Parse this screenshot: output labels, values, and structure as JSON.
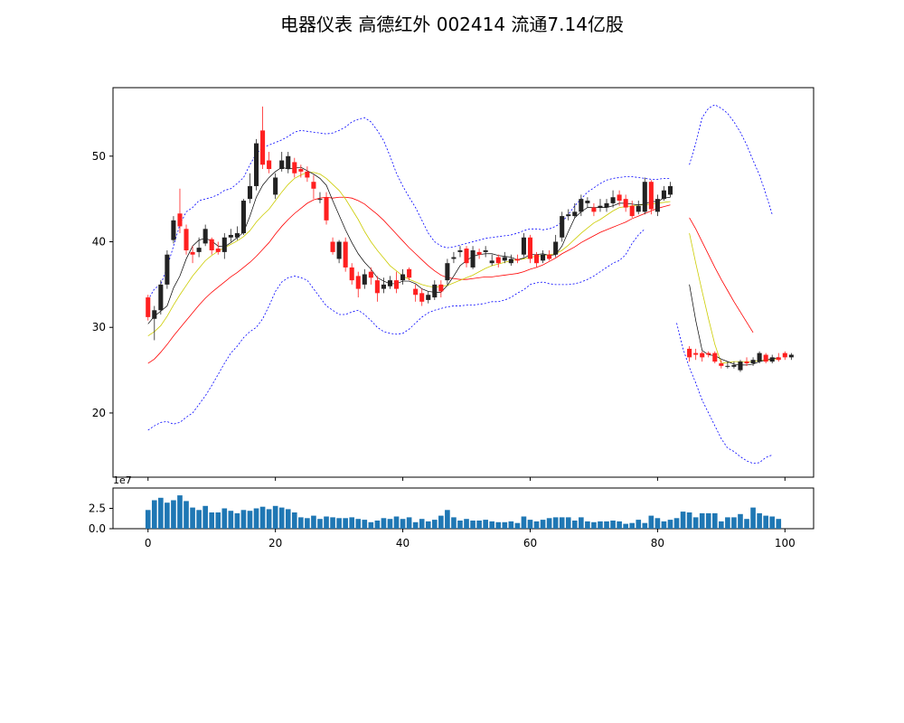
{
  "title": "电器仪表 高德红外 002414 流通7.14亿股",
  "chart_data": {
    "type": "candlestick",
    "title": "电器仪表 高德红外 002414 流通7.14亿股",
    "x": {
      "ticks": [
        0,
        20,
        40,
        60,
        80,
        100
      ],
      "range": [
        -5.5,
        104.5
      ]
    },
    "price_axis": {
      "ticks": [
        20,
        30,
        40,
        50
      ],
      "range": [
        12.5,
        58
      ]
    },
    "volume_axis": {
      "ticks": [
        0.0,
        2.5
      ],
      "offset_label": "1e7",
      "range": [
        0,
        5
      ]
    },
    "colors": {
      "up": "#222222",
      "down": "#ff2020",
      "ma_short": "#000000",
      "ma_mid": "#cccc00",
      "ma_long": "#ff0000",
      "boll": "#0000ff",
      "volume": "#1f77b4"
    },
    "candles": [
      [
        33.5,
        31.2,
        33.8,
        30.8
      ],
      [
        31.0,
        32.0,
        32.5,
        28.5
      ],
      [
        32.0,
        35.0,
        35.5,
        31.5
      ],
      [
        35.0,
        38.5,
        39.0,
        34.5
      ],
      [
        40.2,
        42.5,
        43.0,
        39.8
      ],
      [
        43.3,
        41.8,
        46.2,
        41.0
      ],
      [
        41.5,
        39.0,
        42.0,
        38.5
      ],
      [
        38.8,
        38.5,
        39.5,
        37.5
      ],
      [
        38.8,
        39.3,
        40.5,
        38.2
      ],
      [
        39.8,
        41.5,
        42.0,
        39.5
      ],
      [
        40.3,
        39.0,
        40.5,
        38.5
      ],
      [
        39.2,
        38.8,
        40.0,
        38.5
      ],
      [
        38.8,
        40.5,
        41.0,
        38.0
      ],
      [
        40.5,
        40.8,
        41.5,
        40.0
      ],
      [
        40.5,
        41.0,
        41.8,
        40.2
      ],
      [
        41.0,
        44.8,
        45.0,
        40.8
      ],
      [
        45.0,
        46.5,
        48.0,
        44.5
      ],
      [
        46.5,
        51.5,
        52.0,
        46.0
      ],
      [
        53.0,
        49.0,
        55.8,
        48.5
      ],
      [
        49.5,
        48.5,
        50.5,
        48.0
      ],
      [
        45.5,
        47.5,
        48.0,
        45.0
      ],
      [
        48.5,
        49.5,
        50.5,
        48.2
      ],
      [
        48.5,
        50.0,
        50.5,
        48.0
      ],
      [
        49.3,
        48.0,
        49.8,
        47.5
      ],
      [
        48.5,
        48.2,
        49.0,
        47.5
      ],
      [
        48.2,
        47.5,
        48.8,
        47.0
      ],
      [
        47.0,
        46.2,
        47.8,
        45.0
      ],
      [
        45.0,
        45.0,
        45.8,
        44.5
      ],
      [
        45.2,
        42.5,
        45.8,
        42.0
      ],
      [
        40.0,
        38.8,
        40.5,
        38.5
      ],
      [
        38.0,
        40.0,
        40.2,
        37.5
      ],
      [
        40.0,
        37.0,
        40.5,
        36.5
      ],
      [
        37.0,
        35.5,
        37.5,
        35.0
      ],
      [
        36.0,
        34.5,
        36.5,
        33.5
      ],
      [
        35.0,
        36.2,
        36.8,
        34.5
      ],
      [
        36.5,
        35.8,
        37.0,
        35.0
      ],
      [
        35.5,
        34.0,
        36.0,
        33.0
      ],
      [
        34.5,
        35.0,
        35.8,
        34.0
      ],
      [
        34.8,
        35.5,
        36.0,
        34.5
      ],
      [
        35.5,
        34.5,
        36.5,
        34.0
      ],
      [
        35.5,
        36.2,
        36.8,
        35.0
      ],
      [
        36.8,
        35.8,
        37.0,
        35.5
      ],
      [
        34.5,
        33.8,
        35.0,
        33.0
      ],
      [
        34.0,
        33.0,
        34.5,
        32.5
      ],
      [
        33.2,
        33.8,
        34.2,
        32.8
      ],
      [
        33.5,
        35.0,
        35.5,
        33.2
      ],
      [
        35.0,
        34.2,
        35.5,
        33.5
      ],
      [
        35.5,
        37.5,
        38.0,
        35.0
      ],
      [
        38.0,
        38.2,
        38.8,
        37.5
      ],
      [
        38.8,
        39.0,
        39.5,
        38.2
      ],
      [
        39.2,
        37.5,
        39.5,
        37.0
      ],
      [
        37.0,
        39.0,
        39.5,
        36.8
      ],
      [
        38.8,
        38.5,
        39.2,
        38.0
      ],
      [
        38.8,
        39.0,
        39.5,
        38.2
      ],
      [
        37.5,
        37.8,
        38.5,
        37.2
      ],
      [
        38.2,
        37.5,
        38.5,
        37.0
      ],
      [
        37.8,
        38.2,
        38.8,
        37.5
      ],
      [
        37.5,
        38.0,
        38.5,
        37.2
      ],
      [
        38.0,
        37.8,
        38.5,
        37.5
      ],
      [
        38.5,
        40.5,
        41.0,
        38.2
      ],
      [
        40.5,
        38.0,
        40.8,
        37.5
      ],
      [
        38.5,
        37.5,
        38.8,
        37.0
      ],
      [
        37.8,
        38.5,
        39.0,
        37.5
      ],
      [
        38.5,
        38.0,
        39.0,
        37.8
      ],
      [
        38.5,
        40.0,
        40.8,
        38.2
      ],
      [
        40.5,
        43.0,
        43.5,
        40.0
      ],
      [
        43.0,
        43.2,
        43.8,
        42.5
      ],
      [
        43.0,
        43.5,
        44.5,
        42.8
      ],
      [
        43.5,
        45.0,
        45.5,
        43.0
      ],
      [
        44.5,
        44.8,
        45.2,
        44.0
      ],
      [
        44.0,
        43.5,
        44.5,
        43.0
      ],
      [
        44.0,
        44.2,
        45.0,
        43.5
      ],
      [
        44.0,
        44.5,
        45.0,
        43.5
      ],
      [
        44.5,
        45.2,
        46.0,
        44.0
      ],
      [
        45.5,
        44.8,
        46.0,
        44.2
      ],
      [
        45.0,
        44.0,
        45.5,
        43.5
      ],
      [
        44.2,
        43.0,
        44.8,
        42.8
      ],
      [
        43.5,
        44.2,
        44.8,
        43.2
      ],
      [
        43.5,
        47.0,
        47.5,
        43.2
      ],
      [
        47.0,
        43.8,
        47.2,
        43.2
      ],
      [
        43.5,
        45.0,
        45.5,
        43.0
      ],
      [
        45.0,
        46.0,
        46.5,
        44.8
      ],
      [
        45.5,
        46.5,
        47.0,
        45.2
      ],
      null,
      null,
      [
        27.5,
        26.5,
        27.8,
        26.0
      ],
      [
        27.0,
        26.8,
        27.5,
        26.2
      ],
      [
        27.0,
        26.5,
        27.2,
        26.0
      ],
      [
        27.0,
        26.8,
        27.2,
        26.5
      ],
      [
        27.0,
        26.0,
        27.2,
        25.8
      ],
      [
        25.8,
        25.5,
        26.2,
        25.2
      ],
      [
        25.5,
        25.5,
        26.0,
        25.2
      ],
      [
        25.4,
        25.6,
        26.0,
        25.2
      ],
      [
        25.0,
        26.0,
        26.2,
        24.8
      ],
      [
        26.0,
        25.8,
        26.5,
        25.5
      ],
      [
        25.8,
        26.2,
        26.5,
        25.5
      ],
      [
        26.0,
        27.0,
        27.2,
        25.8
      ],
      [
        26.8,
        26.0,
        27.0,
        25.8
      ],
      [
        26.0,
        26.5,
        26.8,
        25.8
      ],
      [
        26.5,
        26.2,
        27.0,
        26.0
      ],
      [
        27.0,
        26.5,
        27.2,
        26.2
      ],
      [
        26.5,
        26.8,
        27.0,
        26.2
      ]
    ],
    "ma_short": [
      30.4,
      31.3,
      31.9,
      32.5,
      34.6,
      36.0,
      38.0,
      39.5,
      40.2,
      40.4,
      40.1,
      39.5,
      39.4,
      39.9,
      40.5,
      41.1,
      43.0,
      45.2,
      46.6,
      47.5,
      48.2,
      48.7,
      48.5,
      48.6,
      48.7,
      48.3,
      47.9,
      47.4,
      46.6,
      44.8,
      43.1,
      41.4,
      39.9,
      38.6,
      37.6,
      36.8,
      35.8,
      35.4,
      35.1,
      35.1,
      35.4,
      35.4,
      35.1,
      34.5,
      34.2,
      34.1,
      34.1,
      34.9,
      36.0,
      37.2,
      37.8,
      38.3,
      38.5,
      38.6,
      38.6,
      38.4,
      38.3,
      38.2,
      37.9,
      38.1,
      38.5,
      38.5,
      38.6,
      38.4,
      38.5,
      39.5,
      41.2,
      42.8,
      43.5,
      44.0,
      44.0,
      44.0,
      44.0,
      44.2,
      44.5,
      44.5,
      44.4,
      44.3,
      44.4,
      44.7,
      44.7,
      45.1,
      45.2,
      null,
      null,
      35.0,
      30.8,
      27.3,
      26.8,
      26.7,
      26.3,
      26.0,
      25.7,
      25.6,
      25.6,
      25.7,
      26.0,
      26.2,
      26.3,
      26.5
    ],
    "ma_mid": [
      29.0,
      29.5,
      30.2,
      31.3,
      32.6,
      33.8,
      34.9,
      36.0,
      36.9,
      37.8,
      38.4,
      38.9,
      39.3,
      39.7,
      40.1,
      40.6,
      41.3,
      42.3,
      43.1,
      43.8,
      44.8,
      45.8,
      46.7,
      47.4,
      47.8,
      48.1,
      48.1,
      47.9,
      47.4,
      46.7,
      46.0,
      45.0,
      43.8,
      42.6,
      41.2,
      40.0,
      39.0,
      38.1,
      37.2,
      36.6,
      36.0,
      35.6,
      35.3,
      35.0,
      34.8,
      34.7,
      34.8,
      34.9,
      35.2,
      35.5,
      35.8,
      36.1,
      36.5,
      36.9,
      37.2,
      37.4,
      37.6,
      37.8,
      37.9,
      38.0,
      38.2,
      38.3,
      38.4,
      38.5,
      38.6,
      39.0,
      39.6,
      40.3,
      41.0,
      41.6,
      42.2,
      42.6,
      43.1,
      43.6,
      44.0,
      44.1,
      44.2,
      44.3,
      44.3,
      44.4,
      44.5,
      44.6,
      44.7,
      null,
      null,
      41.0,
      37.5,
      34.2,
      31.0,
      28.0,
      25.8,
      25.9,
      26.0,
      26.0,
      26.0,
      26.0,
      26.1,
      26.2,
      26.2,
      26.3
    ],
    "ma_long": [
      25.8,
      26.3,
      27.1,
      28.0,
      29.0,
      29.9,
      30.8,
      31.7,
      32.6,
      33.4,
      34.1,
      34.7,
      35.3,
      35.9,
      36.4,
      37.0,
      37.6,
      38.3,
      39.1,
      39.9,
      40.9,
      41.8,
      42.6,
      43.3,
      43.9,
      44.5,
      44.9,
      45.1,
      45.2,
      45.1,
      45.2,
      45.2,
      45.1,
      44.8,
      44.4,
      43.8,
      43.2,
      42.5,
      41.7,
      40.9,
      40.1,
      39.3,
      38.6,
      37.9,
      37.2,
      36.6,
      36.1,
      35.8,
      35.7,
      35.6,
      35.6,
      35.7,
      35.8,
      35.9,
      35.9,
      36.0,
      36.1,
      36.2,
      36.3,
      36.5,
      36.8,
      37.0,
      37.3,
      37.7,
      38.1,
      38.6,
      39.0,
      39.4,
      39.9,
      40.3,
      40.7,
      41.1,
      41.4,
      41.7,
      42.0,
      42.3,
      42.7,
      43.0,
      43.3,
      43.6,
      43.9,
      44.1,
      44.3,
      null,
      null,
      42.8,
      41.5,
      40.0,
      38.5,
      37.0,
      35.6,
      34.3,
      33.0,
      31.8,
      30.6,
      29.4,
      null,
      null,
      null,
      null
    ],
    "boll_upper": [
      33.2,
      34.5,
      35.0,
      37.0,
      39.5,
      42.0,
      43.5,
      44.0,
      44.8,
      45.0,
      45.2,
      45.5,
      46.0,
      46.2,
      46.8,
      47.5,
      49.0,
      50.3,
      51.0,
      51.3,
      51.6,
      51.9,
      52.3,
      52.8,
      53.0,
      52.9,
      52.8,
      52.7,
      52.6,
      52.7,
      53.0,
      53.4,
      54.0,
      54.3,
      54.5,
      54.0,
      53.0,
      51.8,
      50.0,
      48.0,
      46.5,
      45.2,
      44.0,
      42.5,
      41.0,
      40.0,
      39.5,
      39.3,
      39.4,
      39.6,
      39.8,
      40.0,
      40.2,
      40.4,
      40.5,
      40.6,
      40.7,
      40.8,
      41.0,
      41.3,
      41.5,
      41.5,
      41.4,
      41.5,
      41.8,
      42.3,
      43.2,
      44.2,
      45.0,
      45.8,
      46.3,
      46.8,
      47.2,
      47.4,
      47.5,
      47.6,
      47.6,
      47.5,
      47.4,
      47.3,
      47.3,
      47.4,
      47.4,
      null,
      null,
      49.0,
      51.5,
      54.5,
      55.6,
      56.0,
      55.6,
      55.0,
      54.0,
      52.8,
      51.3,
      49.5,
      47.8,
      45.6,
      43.2
    ],
    "boll_lower": [
      18.0,
      18.5,
      18.9,
      19.0,
      18.7,
      18.9,
      19.5,
      20.0,
      21.0,
      22.0,
      23.2,
      24.5,
      25.8,
      27.0,
      27.8,
      28.8,
      29.5,
      30.0,
      31.0,
      32.5,
      34.2,
      35.3,
      35.8,
      36.0,
      35.8,
      35.5,
      34.5,
      33.5,
      32.5,
      32.0,
      31.5,
      31.5,
      31.8,
      32.0,
      31.5,
      30.8,
      30.0,
      29.5,
      29.3,
      29.2,
      29.3,
      29.8,
      30.5,
      31.2,
      31.7,
      32.0,
      32.2,
      32.4,
      32.5,
      32.5,
      32.6,
      32.6,
      32.7,
      32.8,
      33.0,
      33.0,
      33.2,
      33.5,
      34.0,
      34.4,
      35.0,
      35.2,
      35.3,
      35.1,
      35.0,
      35.0,
      35.0,
      35.1,
      35.3,
      35.6,
      36.0,
      36.5,
      37.0,
      37.5,
      37.8,
      38.5,
      39.8,
      40.8,
      41.5,
      null,
      null,
      null,
      null,
      30.5,
      27.5,
      25.3,
      23.5,
      21.5,
      20.0,
      18.5,
      17.0,
      15.9,
      15.5,
      14.9,
      14.4,
      14.1,
      14.2,
      14.8,
      15.1
    ],
    "volume": [
      2.3,
      3.5,
      3.8,
      3.2,
      3.5,
      4.1,
      3.4,
      2.6,
      2.3,
      2.8,
      2.0,
      2.0,
      2.5,
      2.2,
      1.9,
      2.3,
      2.2,
      2.5,
      2.7,
      2.4,
      2.8,
      2.6,
      2.4,
      2.0,
      1.4,
      1.3,
      1.6,
      1.2,
      1.5,
      1.4,
      1.3,
      1.3,
      1.4,
      1.2,
      1.1,
      0.8,
      1.0,
      1.3,
      1.2,
      1.5,
      1.2,
      1.4,
      0.8,
      1.2,
      0.9,
      1.1,
      1.6,
      2.3,
      1.4,
      1.0,
      1.2,
      1.0,
      1.0,
      1.1,
      0.9,
      0.8,
      0.8,
      0.9,
      0.7,
      1.5,
      1.1,
      0.9,
      1.1,
      1.3,
      1.4,
      1.4,
      1.4,
      1.0,
      1.4,
      0.9,
      0.8,
      0.9,
      0.9,
      1.0,
      0.9,
      0.6,
      0.7,
      1.1,
      0.7,
      1.6,
      1.3,
      0.9,
      1.1,
      1.3,
      2.1,
      2.0,
      1.4,
      1.9,
      1.9,
      1.9,
      0.9,
      1.4,
      1.4,
      1.8,
      1.2,
      2.6,
      1.9,
      1.6,
      1.5,
      1.2
    ]
  }
}
